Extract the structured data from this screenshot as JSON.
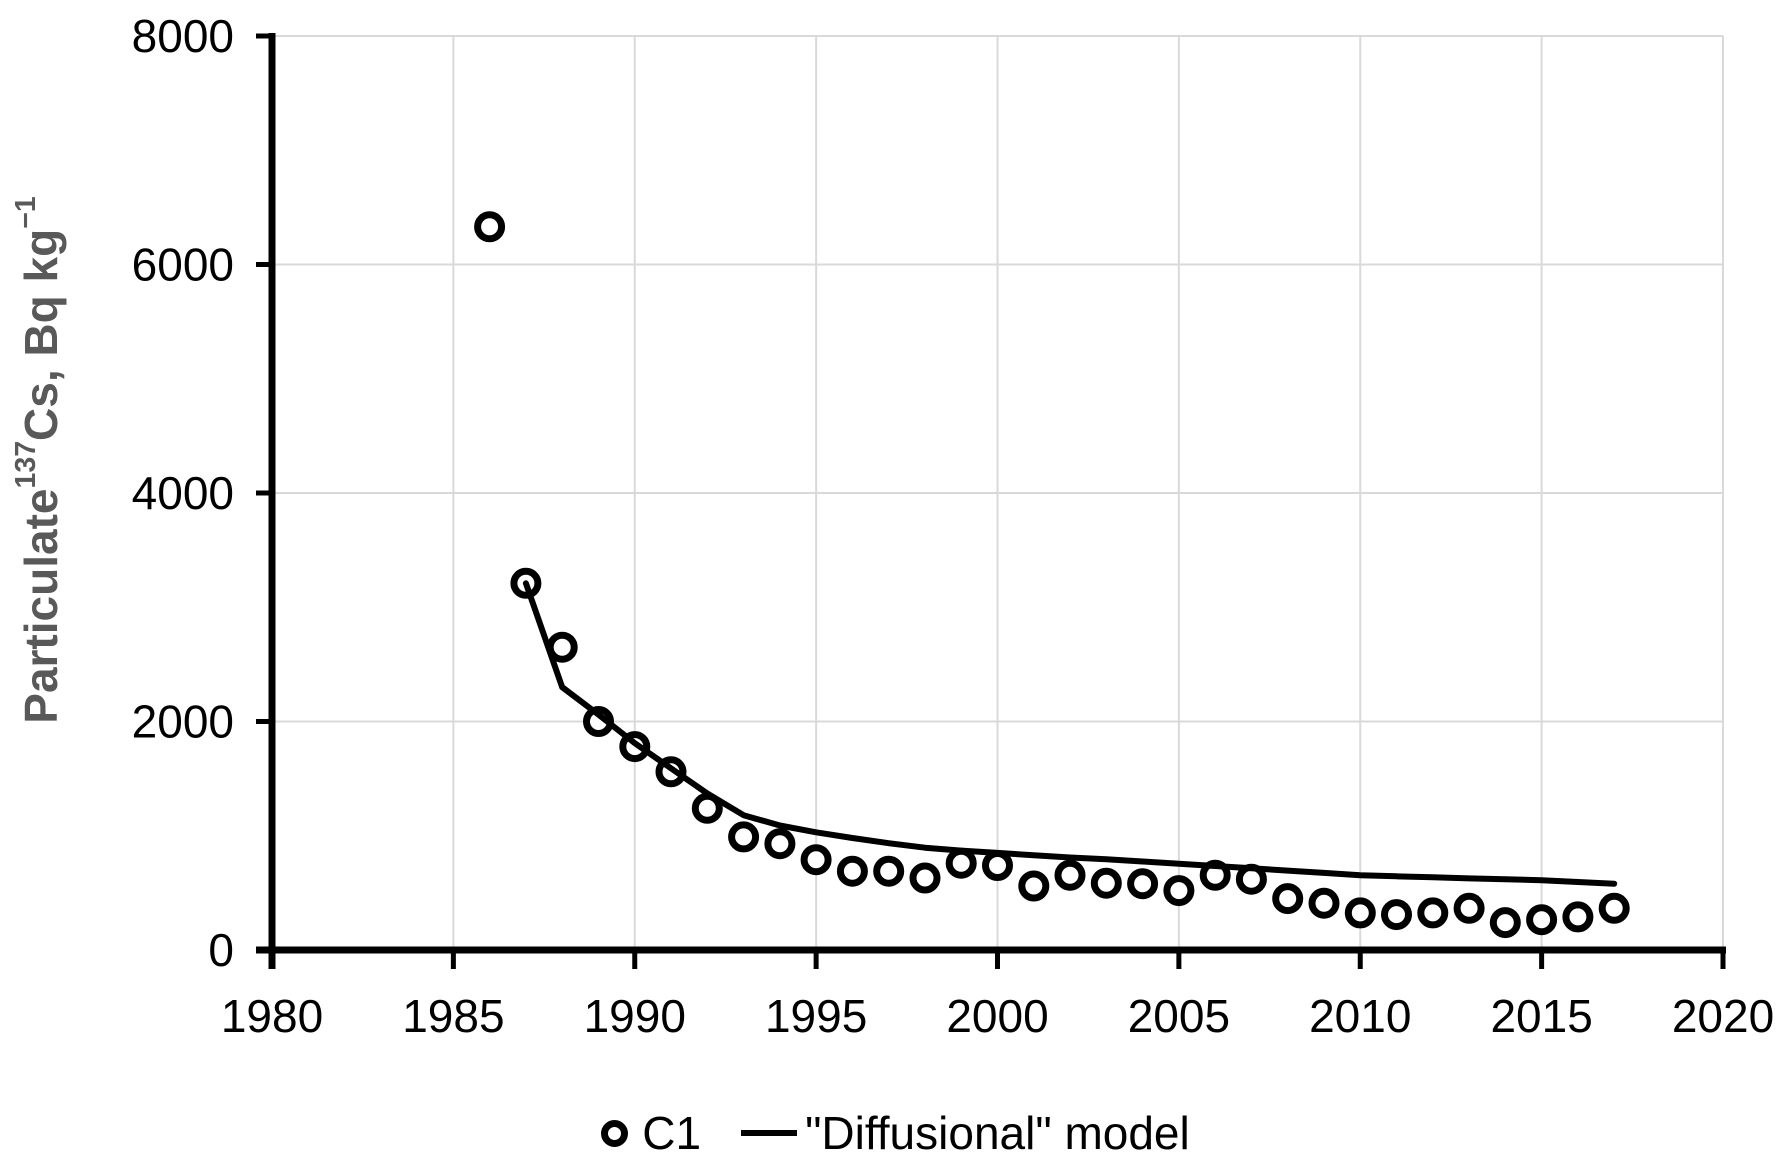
{
  "chart_data": {
    "type": "scatter",
    "title": "",
    "xlabel": "",
    "ylabel": "Particulate ¹³⁷Cs, Bq kg⁻¹",
    "ylabel_parts": {
      "prefix": "Particulate ",
      "sup1": "137",
      "mid": "Cs, Bq kg",
      "sup2": "−1"
    },
    "xlim": [
      1980,
      2020
    ],
    "ylim": [
      0,
      8000
    ],
    "x_ticks": [
      1980,
      1985,
      1990,
      1995,
      2000,
      2005,
      2010,
      2015,
      2020
    ],
    "y_ticks": [
      0,
      2000,
      4000,
      6000,
      8000
    ],
    "grid": true,
    "legend_position": "bottom-center",
    "series": [
      {
        "name": "C1",
        "type": "scatter",
        "marker": "open-circle",
        "x": [
          1986,
          1987,
          1988,
          1989,
          1990,
          1991,
          1992,
          1993,
          1994,
          1995,
          1996,
          1997,
          1998,
          1999,
          2000,
          2001,
          2002,
          2003,
          2004,
          2005,
          2006,
          2007,
          2008,
          2009,
          2010,
          2011,
          2012,
          2013,
          2014,
          2015,
          2016,
          2017
        ],
        "y": [
          6330,
          3210,
          2650,
          2000,
          1780,
          1560,
          1240,
          990,
          930,
          790,
          690,
          690,
          630,
          760,
          740,
          560,
          655,
          585,
          580,
          520,
          655,
          620,
          450,
          410,
          325,
          310,
          325,
          365,
          240,
          265,
          290,
          365
        ]
      },
      {
        "name": "\"Diffusional\" model",
        "type": "line",
        "x": [
          1987,
          1988,
          1989,
          1990,
          1991,
          1992,
          1993,
          1994,
          1995,
          1996,
          1997,
          1998,
          1999,
          2000,
          2001,
          2002,
          2003,
          2004,
          2005,
          2006,
          2007,
          2008,
          2009,
          2010,
          2011,
          2012,
          2013,
          2014,
          2015,
          2016,
          2017
        ],
        "y": [
          3210,
          2300,
          2060,
          1810,
          1590,
          1370,
          1180,
          1090,
          1030,
          980,
          935,
          895,
          870,
          850,
          830,
          810,
          795,
          775,
          755,
          735,
          715,
          695,
          675,
          655,
          645,
          636,
          627,
          620,
          610,
          595,
          580
        ]
      }
    ]
  },
  "legend": {
    "items": [
      {
        "label": "C1",
        "marker": "open-circle"
      },
      {
        "label": "\"Diffusional\" model",
        "marker": "line"
      }
    ]
  },
  "colors": {
    "axis": "#000000",
    "tick_label": "#000000",
    "axis_title": "#595959",
    "gridline": "#D9D9D9",
    "marker_stroke": "#000000",
    "marker_fill": "#FFFFFF",
    "model_line": "#000000",
    "background": "#FFFFFF"
  }
}
